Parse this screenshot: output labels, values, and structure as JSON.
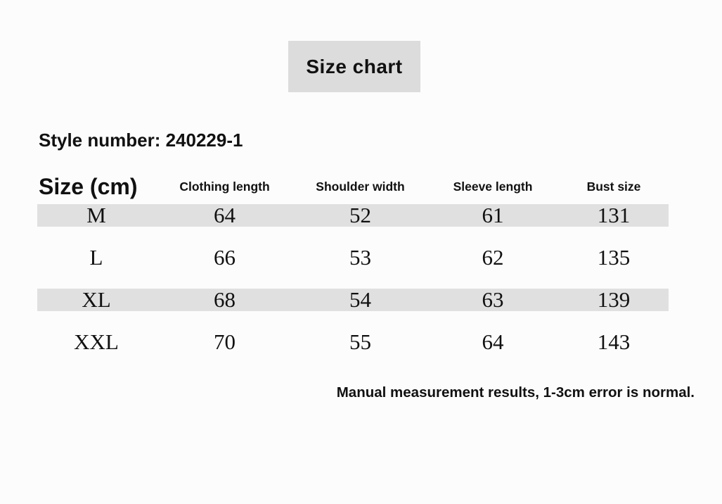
{
  "page": {
    "background_color": "#fcfcfc",
    "text_color": "#111111"
  },
  "title_box": {
    "label": "Size chart",
    "background_color": "#dcdcdc"
  },
  "style_number": {
    "label": "Style number: 240229-1"
  },
  "table": {
    "row_shade_color": "#e0e0e0",
    "columns": [
      "Size (cm)",
      "Clothing length",
      "Shoulder width",
      "Sleeve length",
      "Bust size"
    ],
    "rows": [
      {
        "cells": [
          "M",
          "64",
          "52",
          "61",
          "131"
        ],
        "shaded": true
      },
      {
        "cells": [
          "L",
          "66",
          "53",
          "62",
          "135"
        ],
        "shaded": false
      },
      {
        "cells": [
          "XL",
          "68",
          "54",
          "63",
          "139"
        ],
        "shaded": true
      },
      {
        "cells": [
          "XXL",
          "70",
          "55",
          "64",
          "143"
        ],
        "shaded": false
      }
    ]
  },
  "footnote": {
    "text": "Manual measurement results, 1-3cm error is normal."
  }
}
